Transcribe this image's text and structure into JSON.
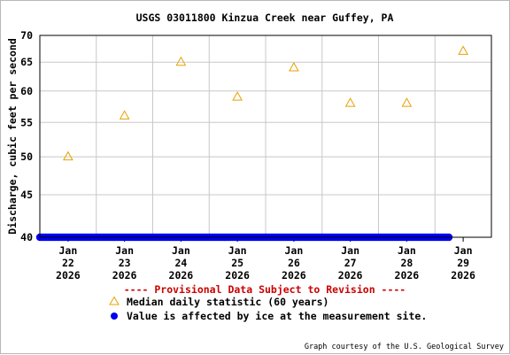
{
  "chart_data": {
    "type": "scatter",
    "title": "USGS 03011800 Kinzua Creek near Guffey, PA",
    "ylabel": "Discharge, cubic feet per second",
    "xlabel": "",
    "ylim": [
      40,
      70
    ],
    "yscale": "log",
    "y_ticks": [
      40,
      45,
      50,
      55,
      60,
      65,
      70
    ],
    "x_ticks": [
      {
        "line1": "Jan",
        "line2": "22",
        "line3": "2026"
      },
      {
        "line1": "Jan",
        "line2": "23",
        "line3": "2026"
      },
      {
        "line1": "Jan",
        "line2": "24",
        "line3": "2026"
      },
      {
        "line1": "Jan",
        "line2": "25",
        "line3": "2026"
      },
      {
        "line1": "Jan",
        "line2": "26",
        "line3": "2026"
      },
      {
        "line1": "Jan",
        "line2": "27",
        "line3": "2026"
      },
      {
        "line1": "Jan",
        "line2": "28",
        "line3": "2026"
      },
      {
        "line1": "Jan",
        "line2": "29",
        "line3": "2026"
      }
    ],
    "xlim": [
      "2026-01-21 12:00",
      "2026-01-29 12:00"
    ],
    "grid": true,
    "series": [
      {
        "name": "Median daily statistic (60 years)",
        "marker": "triangle",
        "color": "#e8a000",
        "x": [
          "2026-01-22",
          "2026-01-23",
          "2026-01-24",
          "2026-01-25",
          "2026-01-26",
          "2026-01-27",
          "2026-01-28",
          "2026-01-29"
        ],
        "values": [
          50,
          56,
          65,
          59,
          64,
          58,
          58,
          67
        ]
      },
      {
        "name": "Value is affected by ice at the measurement site.",
        "marker": "circle",
        "color": "#0000ee",
        "x_range": [
          "2026-01-21 12:00",
          "2026-01-28 18:00"
        ],
        "value": 40
      }
    ],
    "provisional_notice": "---- Provisional Data Subject to Revision ----",
    "credit": "Graph courtesy of the U.S. Geological Survey"
  }
}
